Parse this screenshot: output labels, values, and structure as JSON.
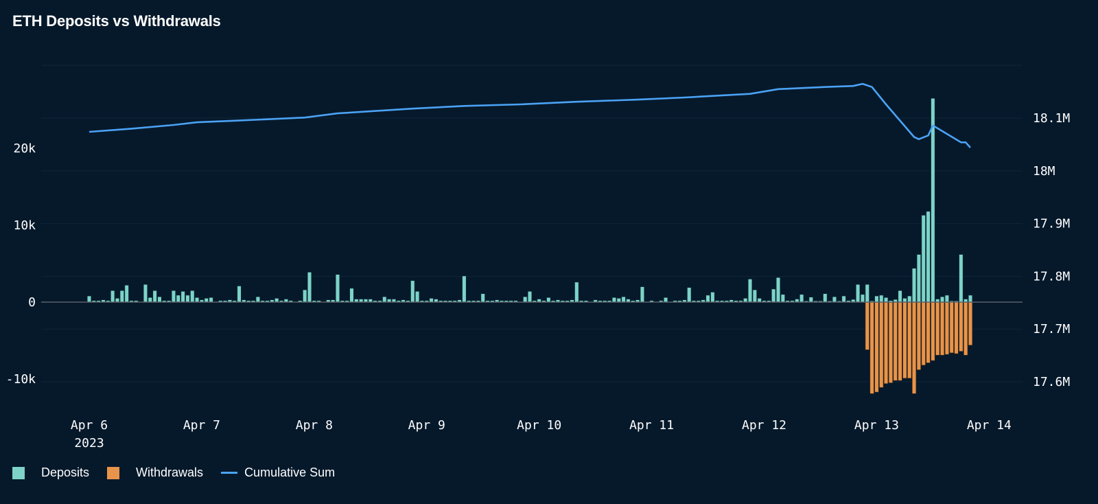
{
  "chart_data": {
    "type": "bar",
    "title": "ETH Deposits vs Withdrawals",
    "x_start": "2023-04-06T00:00",
    "x_step": "1h",
    "x_ticks": [
      {
        "label": "Apr 6",
        "sub": "2023",
        "date": "2023-04-06T00:00"
      },
      {
        "label": "Apr 7",
        "date": "2023-04-07T00:00"
      },
      {
        "label": "Apr 8",
        "date": "2023-04-08T00:00"
      },
      {
        "label": "Apr 9",
        "date": "2023-04-09T00:00"
      },
      {
        "label": "Apr 10",
        "date": "2023-04-10T00:00"
      },
      {
        "label": "Apr 11",
        "date": "2023-04-11T00:00"
      },
      {
        "label": "Apr 12",
        "date": "2023-04-12T00:00"
      },
      {
        "label": "Apr 13",
        "date": "2023-04-13T00:00"
      },
      {
        "label": "Apr 14",
        "date": "2023-04-14T00:00"
      }
    ],
    "y_left": {
      "ticks": [
        {
          "v": -10000,
          "label": "-10k"
        },
        {
          "v": 0,
          "label": "0"
        },
        {
          "v": 10000,
          "label": "10k"
        },
        {
          "v": 20000,
          "label": "20k"
        }
      ],
      "range": [
        -14000,
        30000
      ]
    },
    "y_right": {
      "ticks": [
        {
          "v": 17600000,
          "label": "17.6M"
        },
        {
          "v": 17700000,
          "label": "17.7M"
        },
        {
          "v": 17800000,
          "label": "17.8M"
        },
        {
          "v": 17900000,
          "label": "17.9M"
        },
        {
          "v": 18000000,
          "label": "18M"
        },
        {
          "v": 18100000,
          "label": "18.1M"
        }
      ]
    },
    "grid": true,
    "legend_position": "bottom-left",
    "series": [
      {
        "name": "Deposits",
        "type": "bar",
        "color": "#7dd3c8",
        "axis": "left",
        "values": [
          800,
          200,
          200,
          300,
          200,
          1500,
          500,
          1500,
          2200,
          200,
          200,
          0,
          2300,
          600,
          1500,
          700,
          200,
          200,
          1500,
          900,
          1400,
          900,
          1500,
          600,
          300,
          500,
          600,
          0,
          200,
          200,
          300,
          200,
          2100,
          300,
          200,
          200,
          700,
          200,
          200,
          300,
          500,
          200,
          400,
          200,
          0,
          200,
          1600,
          3900,
          200,
          200,
          0,
          300,
          300,
          3600,
          200,
          200,
          1800,
          400,
          400,
          400,
          400,
          200,
          200,
          700,
          400,
          400,
          200,
          300,
          200,
          2800,
          1400,
          200,
          200,
          500,
          400,
          200,
          200,
          200,
          200,
          300,
          3400,
          200,
          200,
          200,
          1100,
          200,
          200,
          300,
          200,
          200,
          200,
          200,
          0,
          700,
          1400,
          200,
          400,
          200,
          600,
          200,
          300,
          200,
          200,
          300,
          2600,
          200,
          200,
          0,
          300,
          200,
          200,
          200,
          600,
          500,
          700,
          400,
          200,
          300,
          2000,
          0,
          200,
          0,
          200,
          600,
          0,
          200,
          200,
          300,
          1900,
          200,
          200,
          300,
          900,
          1300,
          200,
          200,
          200,
          300,
          200,
          200,
          500,
          3000,
          1600,
          500,
          200,
          200,
          1700,
          3200,
          1000,
          200,
          200,
          400,
          1000,
          150,
          650,
          150,
          150,
          1100,
          150,
          700,
          150,
          800,
          200,
          350,
          2300,
          1000,
          2300,
          150,
          800,
          900,
          600,
          200,
          350,
          1500,
          500,
          800,
          4400,
          6200,
          11300,
          11800,
          26500,
          400,
          700,
          900,
          150,
          150,
          6200,
          400,
          900
        ]
      },
      {
        "name": "Withdrawals",
        "type": "bar",
        "color": "#e8944a",
        "axis": "left",
        "values": [
          0,
          0,
          0,
          0,
          0,
          0,
          0,
          0,
          0,
          0,
          0,
          0,
          0,
          0,
          0,
          0,
          0,
          0,
          0,
          0,
          0,
          0,
          0,
          0,
          0,
          0,
          0,
          0,
          0,
          0,
          0,
          0,
          0,
          0,
          0,
          0,
          0,
          0,
          0,
          0,
          0,
          0,
          0,
          0,
          0,
          0,
          0,
          0,
          0,
          0,
          0,
          0,
          0,
          0,
          0,
          0,
          0,
          0,
          0,
          0,
          0,
          0,
          0,
          0,
          0,
          0,
          0,
          0,
          0,
          0,
          0,
          0,
          0,
          0,
          0,
          0,
          0,
          0,
          0,
          0,
          0,
          0,
          0,
          0,
          0,
          0,
          0,
          0,
          0,
          0,
          0,
          0,
          0,
          0,
          0,
          0,
          0,
          0,
          0,
          0,
          0,
          0,
          0,
          0,
          0,
          0,
          0,
          0,
          0,
          0,
          0,
          0,
          0,
          0,
          0,
          0,
          0,
          0,
          0,
          0,
          0,
          0,
          0,
          0,
          0,
          0,
          0,
          0,
          0,
          0,
          0,
          0,
          0,
          0,
          0,
          0,
          0,
          0,
          0,
          0,
          0,
          0,
          0,
          0,
          0,
          0,
          0,
          0,
          0,
          0,
          0,
          0,
          0,
          0,
          0,
          0,
          0,
          0,
          0,
          0,
          0,
          0,
          0,
          0,
          0,
          0,
          -6200,
          -11900,
          -11700,
          -11100,
          -10600,
          -10500,
          -10200,
          -10200,
          -9900,
          -9900,
          -11900,
          -8800,
          -8200,
          -7900,
          -7600,
          -6900,
          -6900,
          -6800,
          -6600,
          -6700,
          -6400,
          -6900,
          -5600
        ]
      },
      {
        "name": "Cumulative Sum",
        "type": "line",
        "color": "#4ba3f5",
        "axis": "right",
        "points": [
          {
            "x": "2023-04-06T00:00",
            "y": 18074000
          },
          {
            "x": "2023-04-06T09:00",
            "y": 18080000
          },
          {
            "x": "2023-04-06T18:00",
            "y": 18087000
          },
          {
            "x": "2023-04-06T23:00",
            "y": 18092000
          },
          {
            "x": "2023-04-07T07:00",
            "y": 18095000
          },
          {
            "x": "2023-04-07T22:00",
            "y": 18101000
          },
          {
            "x": "2023-04-08T05:00",
            "y": 18109000
          },
          {
            "x": "2023-04-08T21:00",
            "y": 18118000
          },
          {
            "x": "2023-04-09T08:00",
            "y": 18123000
          },
          {
            "x": "2023-04-09T20:00",
            "y": 18126000
          },
          {
            "x": "2023-04-10T08:00",
            "y": 18131000
          },
          {
            "x": "2023-04-10T21:00",
            "y": 18135000
          },
          {
            "x": "2023-04-11T07:00",
            "y": 18139000
          },
          {
            "x": "2023-04-11T21:00",
            "y": 18146000
          },
          {
            "x": "2023-04-12T03:00",
            "y": 18155000
          },
          {
            "x": "2023-04-12T13:00",
            "y": 18159000
          },
          {
            "x": "2023-04-12T19:00",
            "y": 18161000
          },
          {
            "x": "2023-04-12T21:00",
            "y": 18165000
          },
          {
            "x": "2023-04-12T23:00",
            "y": 18159000
          },
          {
            "x": "2023-04-13T02:00",
            "y": 18126000
          },
          {
            "x": "2023-04-13T08:00",
            "y": 18064000
          },
          {
            "x": "2023-04-13T09:00",
            "y": 18060000
          },
          {
            "x": "2023-04-13T11:00",
            "y": 18067000
          },
          {
            "x": "2023-04-13T12:00",
            "y": 18086000
          },
          {
            "x": "2023-04-13T18:00",
            "y": 18054000
          },
          {
            "x": "2023-04-13T19:00",
            "y": 18054000
          },
          {
            "x": "2023-04-13T20:00",
            "y": 18044000
          }
        ]
      }
    ]
  }
}
